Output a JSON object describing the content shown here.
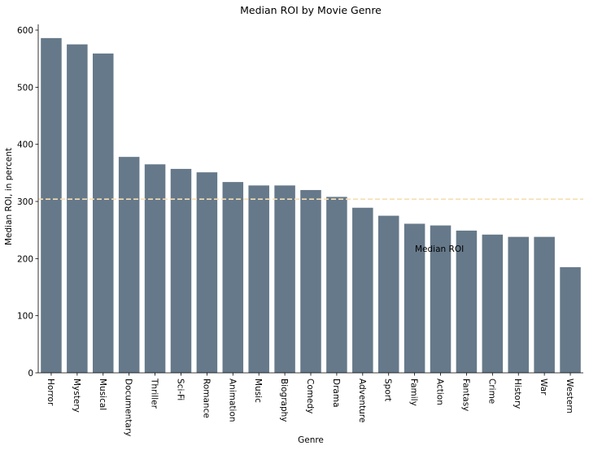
{
  "chart_data": {
    "type": "bar",
    "title": "Median ROI by Movie Genre",
    "xlabel": "Genre",
    "ylabel": "Median ROI, in percent",
    "categories": [
      "Horror",
      "Mystery",
      "Musical",
      "Documentary",
      "Thriller",
      "Sci-Fi",
      "Romance",
      "Animation",
      "Music",
      "Biography",
      "Comedy",
      "Drama",
      "Adventure",
      "Sport",
      "Family",
      "Action",
      "Fantasy",
      "Crime",
      "History",
      "War",
      "Western"
    ],
    "values": [
      586,
      575,
      559,
      378,
      365,
      357,
      351,
      334,
      328,
      328,
      320,
      308,
      289,
      275,
      261,
      258,
      249,
      242,
      238,
      238,
      185
    ],
    "ylim": [
      0,
      610
    ],
    "yticks": [
      0,
      100,
      200,
      300,
      400,
      500,
      600
    ],
    "reference_line": {
      "value": 304,
      "style": "dashed",
      "color": "#f5deb3"
    },
    "annotation": "Median ROI",
    "bar_color": "#66798a",
    "grid": false,
    "legend": "none"
  }
}
